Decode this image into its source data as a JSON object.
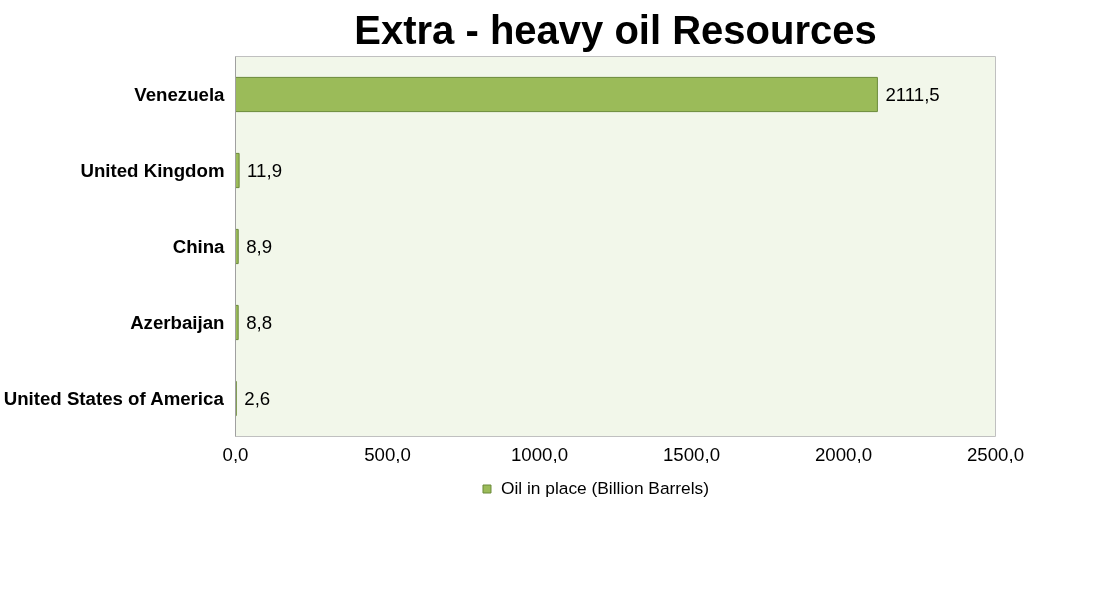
{
  "chart_data": {
    "type": "bar",
    "orientation": "horizontal",
    "title": "Extra - heavy oil Resources",
    "categories": [
      "Venezuela",
      "United Kingdom",
      "China",
      "Azerbaijan",
      "United States of America"
    ],
    "series": [
      {
        "name": "Oil in place (Billion Barrels)",
        "color": "#9bbb59",
        "values": [
          2111.5,
          11.9,
          8.9,
          8.8,
          2.6
        ],
        "value_labels": [
          "2111,5",
          "11,9",
          "8,9",
          "8,8",
          "2,6"
        ]
      }
    ],
    "xlim": [
      0,
      2500
    ],
    "xticks": [
      {
        "value": 0,
        "label": "0,0"
      },
      {
        "value": 500,
        "label": "500,0"
      },
      {
        "value": 1000,
        "label": "1000,0"
      },
      {
        "value": 1500,
        "label": "1500,0"
      },
      {
        "value": 2000,
        "label": "2000,0"
      },
      {
        "value": 2500,
        "label": "2500,0"
      }
    ],
    "grid": false,
    "legend": "bottom"
  }
}
